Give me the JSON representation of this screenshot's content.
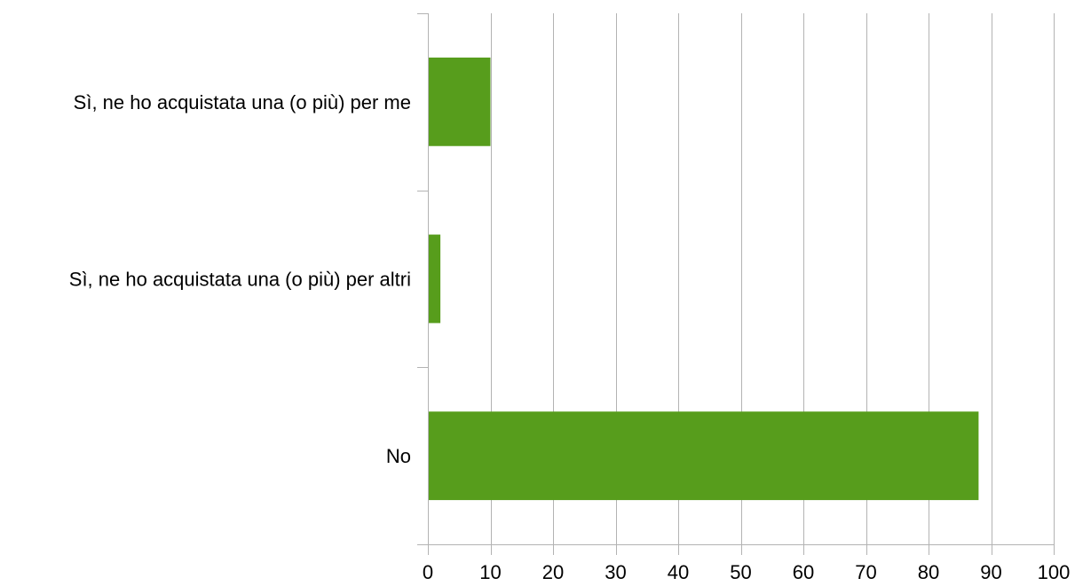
{
  "chart_data": {
    "type": "bar",
    "orientation": "horizontal",
    "title": "",
    "xlabel": "",
    "ylabel": "",
    "categories": [
      "Sì, ne ho acquistata una (o più) per me",
      "Sì, ne ho acquistata una (o più) per altri",
      "No"
    ],
    "values": [
      10,
      2,
      88
    ],
    "xlim": [
      0,
      100
    ],
    "x_ticks": [
      0,
      10,
      20,
      30,
      40,
      50,
      60,
      70,
      80,
      90,
      100
    ],
    "grid": "vertical",
    "legend": "none",
    "colors": {
      "bar": "#579d1c",
      "grid": "#b3b3b3",
      "axis": "#b3b3b3",
      "text": "#000000"
    }
  }
}
